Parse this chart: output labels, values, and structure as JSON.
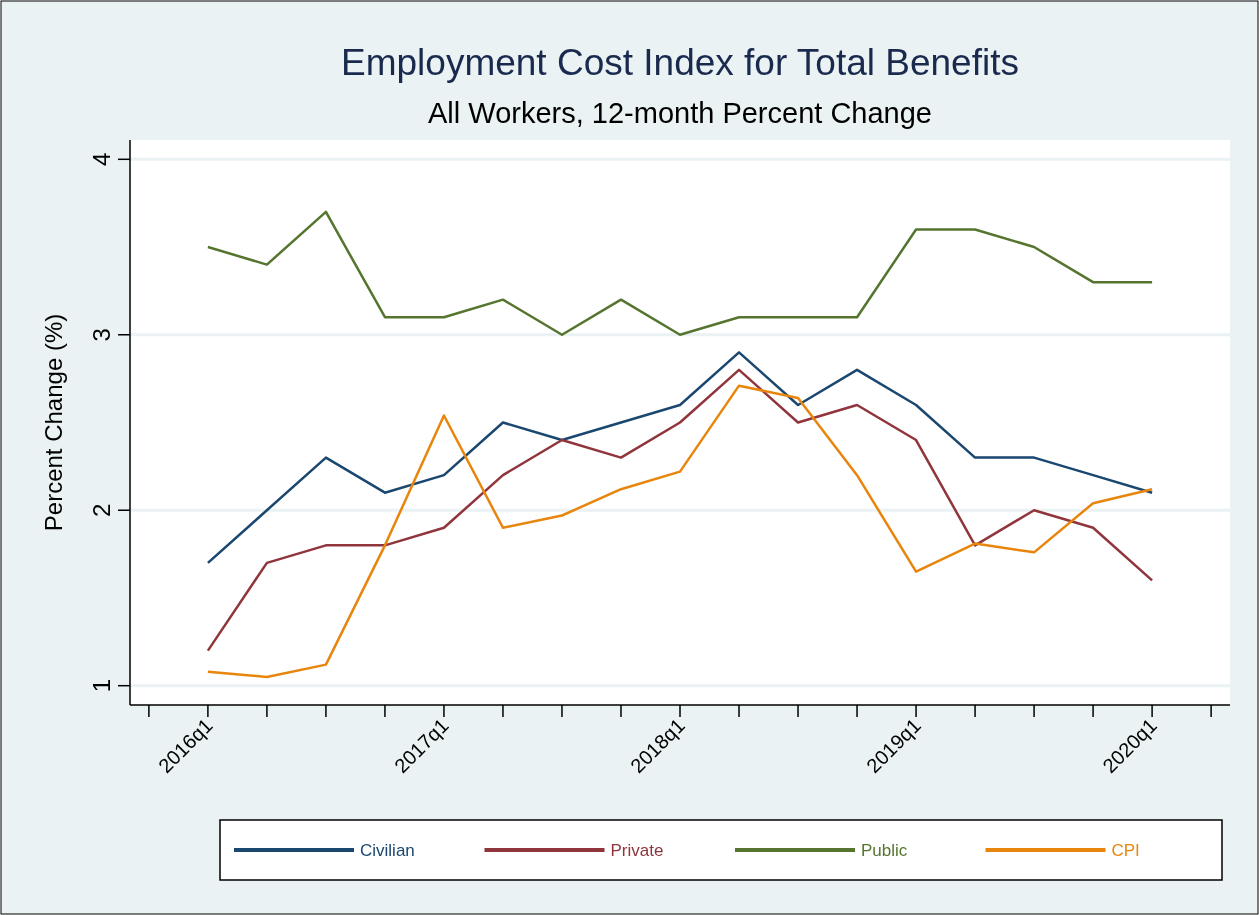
{
  "chart_data": {
    "type": "line",
    "title": "Employment Cost Index for Total Benefits",
    "subtitle": "All Workers, 12-month Percent Change",
    "ylabel": "Percent Change (%)",
    "categories": [
      "2016q1",
      null,
      null,
      null,
      "2017q1",
      null,
      null,
      null,
      "2018q1",
      null,
      null,
      null,
      "2019q1",
      null,
      null,
      null,
      "2020q1"
    ],
    "series": [
      {
        "name": "Civilian",
        "color": "#1a476f",
        "values": [
          1.7,
          2.0,
          2.3,
          2.1,
          2.2,
          2.5,
          2.4,
          2.5,
          2.6,
          2.9,
          2.6,
          2.8,
          2.6,
          2.3,
          2.3,
          2.2,
          2.1
        ]
      },
      {
        "name": "Private",
        "color": "#90353b",
        "values": [
          1.2,
          1.7,
          1.8,
          1.8,
          1.9,
          2.2,
          2.4,
          2.3,
          2.5,
          2.8,
          2.5,
          2.6,
          2.4,
          1.8,
          2.0,
          1.9,
          1.6
        ]
      },
      {
        "name": "Public",
        "color": "#55752f",
        "values": [
          3.5,
          3.4,
          3.7,
          3.1,
          3.1,
          3.2,
          3.0,
          3.2,
          3.0,
          3.1,
          3.1,
          3.1,
          3.6,
          3.6,
          3.5,
          3.3,
          3.3
        ]
      },
      {
        "name": "CPI",
        "color": "#e8850c",
        "values": [
          1.08,
          1.05,
          1.12,
          1.8,
          2.54,
          1.9,
          1.97,
          2.12,
          2.22,
          2.71,
          2.64,
          2.2,
          1.65,
          1.81,
          1.76,
          2.04,
          2.12
        ]
      }
    ],
    "ylim": [
      0.89,
      4.11
    ],
    "yticks": [
      1,
      2,
      3,
      4
    ],
    "grid": "y",
    "legend": "bottom",
    "marker": "none",
    "line_style": "solid"
  }
}
